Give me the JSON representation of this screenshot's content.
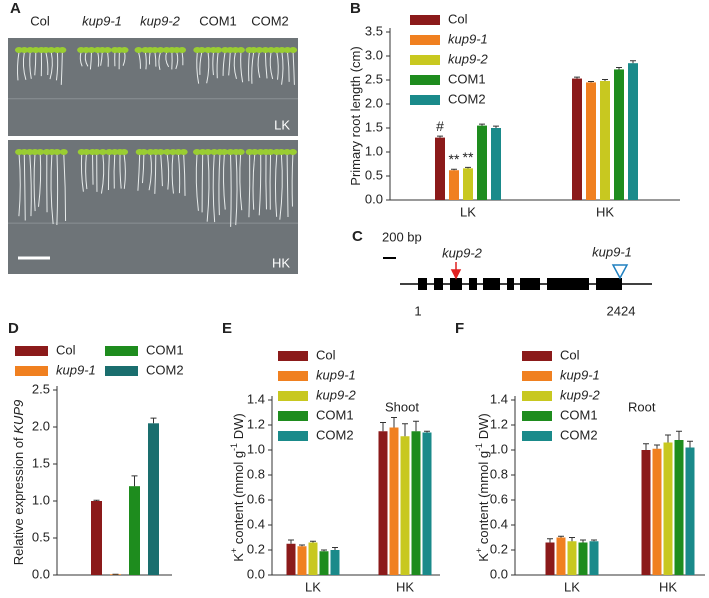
{
  "photo": {
    "panel": "A",
    "columns": [
      {
        "text": "Col"
      },
      {
        "text": "kup9-1",
        "italic": true
      },
      {
        "text": "kup9-2",
        "italic": true
      },
      {
        "text": "COM1"
      },
      {
        "text": "COM2"
      }
    ],
    "plates": [
      "LK",
      "HK"
    ]
  },
  "gene": {
    "panel": "C",
    "scale": "200 bp",
    "markers": [
      {
        "text": "kup9-2",
        "color": "#e02020"
      },
      {
        "text": "kup9-1",
        "color": "#2080c0"
      }
    ],
    "start": 1,
    "end": 2424
  },
  "chart_data": [
    {
      "type": "bar",
      "panel": "B",
      "ylabel": [
        {
          "text": "Primary root length (cm)"
        }
      ],
      "categories": [
        "LK",
        "HK"
      ],
      "series": [
        {
          "name": "Col",
          "color": "#8b1a1a",
          "values": [
            1.3,
            2.53
          ],
          "errors": [
            0.03,
            0.03
          ],
          "markers": [
            "#",
            null
          ]
        },
        {
          "name": "kup9-1",
          "italic": true,
          "color": "#f08020",
          "values": [
            0.62,
            2.45
          ],
          "errors": [
            0.02,
            0.02
          ],
          "markers": [
            "**",
            null
          ]
        },
        {
          "name": "kup9-2",
          "italic": true,
          "color": "#c8c820",
          "values": [
            0.66,
            2.48
          ],
          "errors": [
            0.02,
            0.03
          ],
          "markers": [
            "**",
            null
          ]
        },
        {
          "name": "COM1",
          "color": "#1e8c1e",
          "values": [
            1.55,
            2.72
          ],
          "errors": [
            0.03,
            0.04
          ],
          "markers": [
            null,
            null
          ]
        },
        {
          "name": "COM2",
          "color": "#1a8a8a",
          "values": [
            1.5,
            2.85
          ],
          "errors": [
            0.04,
            0.05
          ],
          "markers": [
            null,
            null
          ]
        }
      ],
      "ylim": [
        0,
        3.5
      ],
      "yticks": [
        {
          "value": 0,
          "label": "0.0"
        },
        0.5,
        {
          "value": 1,
          "label": "1.0"
        },
        1.5,
        {
          "value": 2,
          "label": "2.0"
        },
        2.5,
        {
          "value": 3,
          "label": "3.0"
        },
        3.5
      ]
    },
    {
      "type": "bar",
      "panel": "D",
      "ylabel": [
        {
          "text": "Relative expression of "
        },
        {
          "text": "KUP9",
          "italic": true
        }
      ],
      "series": [
        {
          "name": "Col",
          "color": "#8b1a1a",
          "values": [
            1.0
          ],
          "errors": [
            0.01
          ]
        },
        {
          "name": "kup9-1",
          "italic": true,
          "color": "#f08020",
          "values": [
            0.01
          ],
          "errors": [
            0.0
          ]
        },
        {
          "name": "COM1",
          "color": "#1e8c1e",
          "values": [
            1.2
          ],
          "errors": [
            0.14
          ]
        },
        {
          "name": "COM2",
          "color": "#1a6e6e",
          "values": [
            2.05
          ],
          "errors": [
            0.07
          ]
        }
      ],
      "ylim": [
        0,
        2.5
      ],
      "yticks": [
        {
          "value": 0,
          "label": "0.0"
        },
        0.5,
        {
          "value": 1,
          "label": "1.0"
        },
        1.5,
        {
          "value": 2,
          "label": "2.0"
        },
        2.5
      ]
    },
    {
      "type": "bar",
      "panel": "E",
      "annotation": "Shoot",
      "ylabel": [
        {
          "text": "K"
        },
        {
          "text": "+",
          "sup": true
        },
        {
          "text": " content  (mmol g"
        },
        {
          "text": "-1",
          "sup": true
        },
        {
          "text": " DW)"
        }
      ],
      "categories": [
        "LK",
        "HK"
      ],
      "series": [
        {
          "name": "Col",
          "color": "#8b1a1a",
          "values": [
            0.25,
            1.15
          ],
          "errors": [
            0.03,
            0.07
          ]
        },
        {
          "name": "kup9-1",
          "italic": true,
          "color": "#f08020",
          "values": [
            0.23,
            1.18
          ],
          "errors": [
            0.01,
            0.08
          ]
        },
        {
          "name": "kup9-2",
          "italic": true,
          "color": "#c8c820",
          "values": [
            0.26,
            1.11
          ],
          "errors": [
            0.01,
            0.1
          ]
        },
        {
          "name": "COM1",
          "color": "#1e8c1e",
          "values": [
            0.19,
            1.15
          ],
          "errors": [
            0.01,
            0.08
          ]
        },
        {
          "name": "COM2",
          "color": "#1a8a8a",
          "values": [
            0.2,
            1.14
          ],
          "errors": [
            0.02,
            0.01
          ]
        }
      ],
      "ylim": [
        0,
        1.4
      ],
      "yticks": [
        {
          "value": 0,
          "label": "0.0"
        },
        0.2,
        0.4,
        0.6,
        0.8,
        {
          "value": 1,
          "label": "1.0"
        },
        1.2,
        1.4
      ]
    },
    {
      "type": "bar",
      "panel": "F",
      "annotation": "Root",
      "ylabel": [
        {
          "text": "K"
        },
        {
          "text": "+",
          "sup": true
        },
        {
          "text": " content  (mmol g"
        },
        {
          "text": "-1",
          "sup": true
        },
        {
          "text": " DW)"
        }
      ],
      "categories": [
        "LK",
        "HK"
      ],
      "series": [
        {
          "name": "Col",
          "color": "#8b1a1a",
          "values": [
            0.26,
            1.0
          ],
          "errors": [
            0.03,
            0.05
          ]
        },
        {
          "name": "kup9-1",
          "italic": true,
          "color": "#f08020",
          "values": [
            0.3,
            1.01
          ],
          "errors": [
            0.01,
            0.03
          ]
        },
        {
          "name": "kup9-2",
          "italic": true,
          "color": "#c8c820",
          "values": [
            0.27,
            1.06
          ],
          "errors": [
            0.03,
            0.06
          ]
        },
        {
          "name": "COM1",
          "color": "#1e8c1e",
          "values": [
            0.26,
            1.08
          ],
          "errors": [
            0.02,
            0.07
          ]
        },
        {
          "name": "COM2",
          "color": "#1a8a8a",
          "values": [
            0.27,
            1.02
          ],
          "errors": [
            0.01,
            0.05
          ]
        }
      ],
      "ylim": [
        0,
        1.4
      ],
      "yticks": [
        {
          "value": 0,
          "label": "0.0"
        },
        0.2,
        0.4,
        0.6,
        0.8,
        {
          "value": 1,
          "label": "1.0"
        },
        1.2,
        1.4
      ]
    }
  ]
}
